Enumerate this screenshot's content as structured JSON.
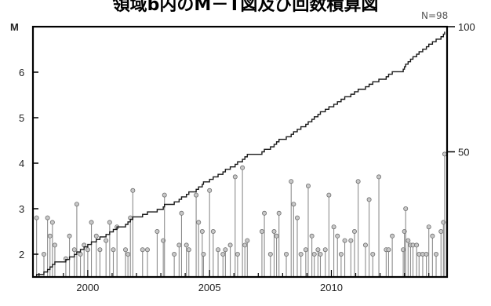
{
  "chart_data": {
    "type": "line",
    "title": "領域b内のM－T図及び回数積算図",
    "count_label": "N=98",
    "ylabel_left": "M",
    "left_axis": {
      "ylim": [
        1.5,
        7.0
      ],
      "ticks": [
        2,
        3,
        4,
        5,
        6
      ]
    },
    "right_axis": {
      "ylim": [
        0,
        100
      ],
      "ticks": [
        50,
        100
      ]
    },
    "xlim": [
      1997.75,
      2014.75
    ],
    "x_ticks": [
      2000,
      2005,
      2010
    ],
    "series": [
      {
        "kind": "magnitude-stems",
        "points": [
          [
            1997.9,
            2.8
          ],
          [
            1998.2,
            2.0
          ],
          [
            1998.35,
            2.8
          ],
          [
            1998.45,
            2.4
          ],
          [
            1998.55,
            2.7
          ],
          [
            1998.65,
            2.2
          ],
          [
            1999.1,
            1.9
          ],
          [
            1999.25,
            2.4
          ],
          [
            1999.45,
            2.1
          ],
          [
            1999.55,
            3.1
          ],
          [
            1999.7,
            2.0
          ],
          [
            1999.85,
            2.2
          ],
          [
            2000.0,
            2.1
          ],
          [
            2000.15,
            2.7
          ],
          [
            2000.35,
            2.4
          ],
          [
            2000.5,
            2.1
          ],
          [
            2000.75,
            2.3
          ],
          [
            2000.9,
            2.7
          ],
          [
            2001.05,
            2.1
          ],
          [
            2001.2,
            2.6
          ],
          [
            2001.55,
            2.1
          ],
          [
            2001.65,
            2.0
          ],
          [
            2001.75,
            2.8
          ],
          [
            2001.85,
            3.4
          ],
          [
            2002.25,
            2.1
          ],
          [
            2002.45,
            2.1
          ],
          [
            2002.85,
            2.5
          ],
          [
            2003.1,
            2.3
          ],
          [
            2003.15,
            3.3
          ],
          [
            2003.55,
            2.0
          ],
          [
            2003.75,
            2.2
          ],
          [
            2003.85,
            2.9
          ],
          [
            2004.05,
            2.2
          ],
          [
            2004.15,
            2.1
          ],
          [
            2004.45,
            3.3
          ],
          [
            2004.55,
            2.7
          ],
          [
            2004.7,
            2.5
          ],
          [
            2004.75,
            2.0
          ],
          [
            2005.0,
            3.4
          ],
          [
            2005.15,
            2.5
          ],
          [
            2005.35,
            2.1
          ],
          [
            2005.55,
            2.0
          ],
          [
            2005.65,
            2.1
          ],
          [
            2005.85,
            2.2
          ],
          [
            2006.05,
            3.7
          ],
          [
            2006.15,
            2.0
          ],
          [
            2006.35,
            3.9
          ],
          [
            2006.45,
            2.2
          ],
          [
            2006.55,
            2.3
          ],
          [
            2007.15,
            2.5
          ],
          [
            2007.25,
            2.9
          ],
          [
            2007.5,
            2.0
          ],
          [
            2007.65,
            2.5
          ],
          [
            2007.75,
            2.4
          ],
          [
            2007.85,
            2.9
          ],
          [
            2008.15,
            2.0
          ],
          [
            2008.35,
            3.6
          ],
          [
            2008.45,
            3.1
          ],
          [
            2008.6,
            2.8
          ],
          [
            2008.75,
            2.0
          ],
          [
            2008.95,
            2.1
          ],
          [
            2009.05,
            3.5
          ],
          [
            2009.2,
            2.4
          ],
          [
            2009.3,
            2.0
          ],
          [
            2009.45,
            2.1
          ],
          [
            2009.55,
            2.0
          ],
          [
            2009.75,
            2.1
          ],
          [
            2009.9,
            3.3
          ],
          [
            2010.1,
            2.6
          ],
          [
            2010.25,
            2.4
          ],
          [
            2010.4,
            2.0
          ],
          [
            2010.55,
            2.3
          ],
          [
            2010.8,
            2.3
          ],
          [
            2010.95,
            2.5
          ],
          [
            2011.1,
            3.6
          ],
          [
            2011.4,
            2.2
          ],
          [
            2011.55,
            3.2
          ],
          [
            2011.7,
            2.0
          ],
          [
            2011.95,
            3.7
          ],
          [
            2012.25,
            2.1
          ],
          [
            2012.35,
            2.1
          ],
          [
            2012.5,
            2.4
          ],
          [
            2012.95,
            2.1
          ],
          [
            2013.0,
            2.5
          ],
          [
            2013.05,
            3.0
          ],
          [
            2013.15,
            2.3
          ],
          [
            2013.25,
            2.2
          ],
          [
            2013.35,
            2.2
          ],
          [
            2013.5,
            2.2
          ],
          [
            2013.6,
            2.0
          ],
          [
            2013.75,
            2.0
          ],
          [
            2013.9,
            2.0
          ],
          [
            2014.0,
            2.6
          ],
          [
            2014.15,
            2.4
          ],
          [
            2014.3,
            2.0
          ],
          [
            2014.5,
            2.5
          ],
          [
            2014.6,
            2.7
          ],
          [
            2014.65,
            4.2
          ]
        ]
      },
      {
        "kind": "cumulative-count",
        "name": "",
        "axis": "right"
      }
    ],
    "grid": false
  },
  "colors": {
    "stem": "#8c8c8c",
    "marker_fill": "#c8c8c8",
    "marker_stroke": "#6e6e6e",
    "cumulative": "#1a1a1a",
    "frame": "#000000"
  }
}
